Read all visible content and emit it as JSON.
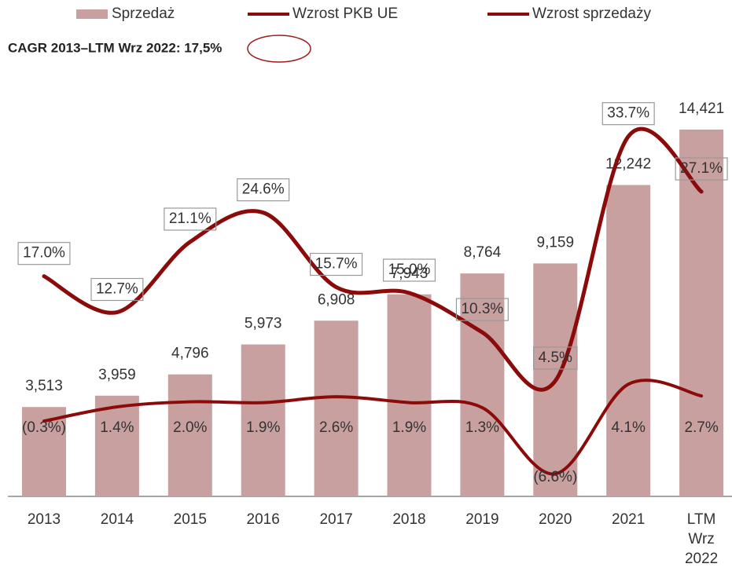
{
  "chart_data": {
    "type": "bar",
    "subtitle": "CAGR 2013–LTM Wrz 2022: 17,5%",
    "categories": [
      "2013",
      "2014",
      "2015",
      "2016",
      "2017",
      "2018",
      "2019",
      "2020",
      "2021",
      "LTM Wrz 2022"
    ],
    "ylim": [
      0,
      15500
    ],
    "y2lim": [
      -9.3,
      37.8
    ],
    "series": [
      {
        "name": "Sprzedaż",
        "type": "bar",
        "color": "#c9a0a0",
        "values": [
          3513,
          3959,
          4796,
          5973,
          6908,
          7943,
          8764,
          9159,
          12242,
          14421
        ],
        "value_labels": [
          "3,513",
          "3,959",
          "4,796",
          "5,973",
          "6,908",
          "7,943",
          "8,764",
          "9,159",
          "12,242",
          "14,421"
        ]
      },
      {
        "name": "Wzrost PKB UE",
        "type": "line",
        "axis": "y2",
        "color": "#8b0a0a",
        "values": [
          -0.3,
          1.4,
          2.0,
          1.9,
          2.6,
          1.9,
          1.3,
          -6.6,
          4.1,
          2.7
        ],
        "value_labels": [
          "(0.3%)",
          "1.4%",
          "2.0%",
          "1.9%",
          "2.6%",
          "1.9%",
          "1.3%",
          "(6.6%)",
          "4.1%",
          "2.7%"
        ]
      },
      {
        "name": "Wzrost sprzedaży",
        "type": "line",
        "axis": "y2",
        "color": "#8b0a0a",
        "values": [
          17.0,
          12.7,
          21.1,
          24.6,
          15.7,
          15.0,
          10.3,
          4.5,
          33.7,
          27.1
        ],
        "value_labels": [
          "17.0%",
          "12.7%",
          "21.1%",
          "24.6%",
          "15.7%",
          "15.0%",
          "10.3%",
          "4.5%",
          "33.7%",
          "27.1%"
        ]
      }
    ]
  }
}
